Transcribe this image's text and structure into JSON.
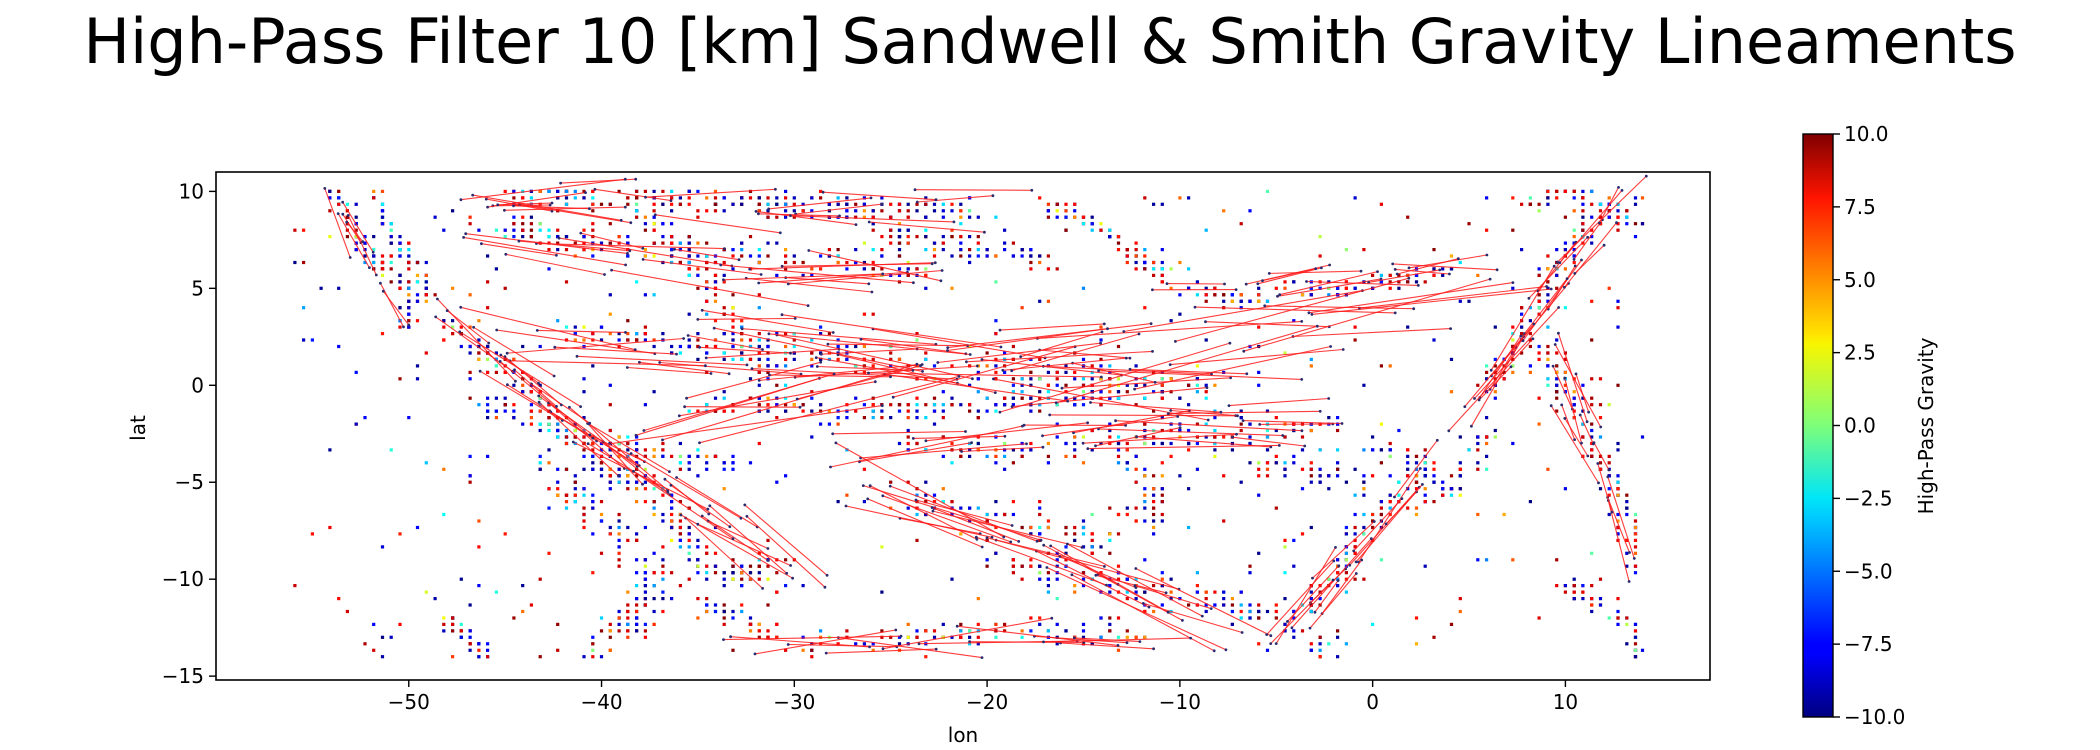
{
  "chart_data": {
    "type": "scatter",
    "title": "High-Pass Filter 10 [km] Sandwell & Smith Gravity Lineaments",
    "xlabel": "lon",
    "ylabel": "lat",
    "xlim": [
      -60,
      17.5
    ],
    "ylim": [
      -15.2,
      11
    ],
    "xticks": [
      -50,
      -40,
      -30,
      -20,
      -10,
      0,
      10
    ],
    "yticks": [
      -15,
      -10,
      -5,
      0,
      5,
      10
    ],
    "grid": false,
    "colorbar": {
      "label": "High-Pass Gravity",
      "colormap": "jet",
      "range": [
        -10,
        10
      ],
      "ticks": [
        "10.0",
        "7.5",
        "5.0",
        "2.5",
        "0.0",
        "−2.5",
        "−5.0",
        "−7.5",
        "−10.0"
      ]
    },
    "series": [
      {
        "kind": "points",
        "data_extent": {
          "lon": [
            -56,
            14
          ],
          "lat": [
            -14,
            10
          ]
        },
        "clusters": [
          {
            "path": [
              [
                -54,
                10
              ],
              [
                -53,
                8.5
              ],
              [
                -52,
                6.5
              ],
              [
                -50,
                5
              ],
              [
                -50,
                3
              ]
            ],
            "n": 110,
            "spread": 0.5
          },
          {
            "path": [
              [
                -52,
                10
              ],
              [
                -51,
                8
              ],
              [
                -49.5,
                6
              ],
              [
                -49,
                4.5
              ]
            ],
            "n": 70,
            "spread": 0.5
          },
          {
            "path": [
              [
                -48,
                3
              ],
              [
                -45,
                1
              ],
              [
                -43,
                -1
              ],
              [
                -41,
                -3
              ],
              [
                -39,
                -5
              ]
            ],
            "n": 140,
            "spread": 0.7
          },
          {
            "path": [
              [
                -46,
                -1
              ],
              [
                -43,
                -2
              ],
              [
                -40,
                -3
              ],
              [
                -37,
                -3.5
              ],
              [
                -33,
                -4
              ]
            ],
            "n": 120,
            "spread": 0.7
          },
          {
            "path": [
              [
                -40,
                -3
              ],
              [
                -38,
                -5
              ],
              [
                -36,
                -7
              ],
              [
                -35,
                -9
              ],
              [
                -33,
                -10
              ],
              [
                -31,
                -9
              ]
            ],
            "n": 160,
            "spread": 1.0
          },
          {
            "path": [
              [
                -43,
                -4
              ],
              [
                -41,
                -6
              ],
              [
                -39,
                -8
              ],
              [
                -37,
                -10
              ],
              [
                -38,
                -12
              ],
              [
                -40,
                -13.5
              ]
            ],
            "n": 150,
            "spread": 1.1
          },
          {
            "path": [
              [
                -48,
                -12
              ],
              [
                -47,
                -13
              ],
              [
                -46,
                -14
              ]
            ],
            "n": 45,
            "spread": 0.6
          },
          {
            "path": [
              [
                -35,
                -11
              ],
              [
                -33,
                -12
              ],
              [
                -31,
                -13
              ]
            ],
            "n": 40,
            "spread": 0.6
          },
          {
            "path": [
              [
                -45,
                10
              ],
              [
                -36,
                9.5
              ],
              [
                -28,
                9.2
              ],
              [
                -20,
                9
              ]
            ],
            "n": 230,
            "spread": 0.8
          },
          {
            "path": [
              [
                -45,
                8
              ],
              [
                -37,
                7
              ],
              [
                -30,
                6.5
              ],
              [
                -23,
                6
              ]
            ],
            "n": 180,
            "spread": 0.9
          },
          {
            "path": [
              [
                -38,
                9
              ],
              [
                -35,
                6
              ],
              [
                -33,
                3
              ],
              [
                -31,
                0
              ]
            ],
            "n": 130,
            "spread": 0.8
          },
          {
            "path": [
              [
                -26,
                8
              ],
              [
                -23,
                7.5
              ],
              [
                -20,
                7
              ],
              [
                -17,
                6.5
              ]
            ],
            "n": 90,
            "spread": 0.7
          },
          {
            "path": [
              [
                -17,
                9.5
              ],
              [
                -14,
                8
              ],
              [
                -12,
                6.5
              ],
              [
                -10,
                5
              ]
            ],
            "n": 90,
            "spread": 0.6
          },
          {
            "path": [
              [
                -10,
                5
              ],
              [
                -7,
                4.5
              ],
              [
                -4,
                5
              ],
              [
                -1,
                5
              ],
              [
                2,
                5.5
              ],
              [
                4,
                6
              ]
            ],
            "n": 110,
            "spread": 0.5
          },
          {
            "path": [
              [
                -42,
                3
              ],
              [
                -35,
                2
              ],
              [
                -28,
                1.5
              ],
              [
                -22,
                0.8
              ],
              [
                -16,
                0.5
              ],
              [
                -10,
                0.3
              ]
            ],
            "n": 220,
            "spread": 0.9
          },
          {
            "path": [
              [
                -35,
                -1
              ],
              [
                -27,
                -1.2
              ],
              [
                -20,
                -1
              ],
              [
                -14,
                -0.5
              ],
              [
                -8,
                0
              ]
            ],
            "n": 210,
            "spread": 0.8
          },
          {
            "path": [
              [
                -25,
                -3
              ],
              [
                -19,
                -3.5
              ],
              [
                -13,
                -3
              ],
              [
                -7,
                -2.5
              ],
              [
                -2,
                -2
              ]
            ],
            "n": 160,
            "spread": 0.9
          },
          {
            "path": [
              [
                -24,
                -6
              ],
              [
                -18,
                -7
              ],
              [
                -14,
                -8
              ],
              [
                -11,
                -6
              ],
              [
                -13,
                -3
              ]
            ],
            "n": 140,
            "spread": 1.1
          },
          {
            "path": [
              [
                -20,
                -9
              ],
              [
                -15,
                -10
              ],
              [
                -10,
                -11
              ],
              [
                -5,
                -12
              ],
              [
                -2,
                -13.5
              ]
            ],
            "n": 150,
            "spread": 1.1
          },
          {
            "path": [
              [
                -30,
                -13.5
              ],
              [
                -24,
                -13
              ],
              [
                -18,
                -12.5
              ],
              [
                -12,
                -13
              ]
            ],
            "n": 100,
            "spread": 0.6
          },
          {
            "path": [
              [
                -4,
                -12
              ],
              [
                -2,
                -10
              ],
              [
                -1,
                -8
              ],
              [
                1,
                -6
              ],
              [
                3,
                -4
              ]
            ],
            "n": 110,
            "spread": 0.7
          },
          {
            "path": [
              [
                0,
                -3
              ],
              [
                2,
                -4
              ],
              [
                4,
                -5.5
              ],
              [
                5,
                -4
              ],
              [
                6,
                -2
              ]
            ],
            "n": 70,
            "spread": 0.6
          },
          {
            "path": [
              [
                -6,
                -4
              ],
              [
                -3,
                -4.5
              ],
              [
                0,
                -5
              ],
              [
                3,
                -6
              ]
            ],
            "n": 60,
            "spread": 0.8
          },
          {
            "path": [
              [
                6,
                0
              ],
              [
                7.5,
                2
              ],
              [
                8.5,
                4
              ],
              [
                9.5,
                6
              ],
              [
                11,
                8
              ],
              [
                13,
                9.5
              ]
            ],
            "n": 140,
            "spread": 0.6
          },
          {
            "path": [
              [
                9,
                2
              ],
              [
                10,
                0
              ],
              [
                11,
                -2
              ],
              [
                12,
                -4
              ],
              [
                13,
                -6
              ],
              [
                13.5,
                -9
              ]
            ],
            "n": 130,
            "spread": 0.9
          },
          {
            "path": [
              [
                10,
                -10.5
              ],
              [
                12,
                -11.5
              ],
              [
                13.5,
                -12.5
              ],
              [
                13.8,
                -14
              ]
            ],
            "n": 50,
            "spread": 0.5
          },
          {
            "path": [
              [
                8,
                9.5
              ],
              [
                10,
                10
              ],
              [
                12,
                9
              ],
              [
                14,
                8
              ]
            ],
            "n": 60,
            "spread": 0.6
          }
        ],
        "scattered": {
          "n": 480
        }
      },
      {
        "kind": "lineaments",
        "color": "#ff1a1a",
        "line_families": [
          {
            "path": [
              [
                -45,
                9.5
              ],
              [
                -20,
                9.2
              ]
            ],
            "count": 22,
            "jitter": 1.4,
            "len": 7
          },
          {
            "path": [
              [
                -45,
                7
              ],
              [
                -22,
                5.5
              ]
            ],
            "count": 20,
            "jitter": 1.4,
            "len": 8
          },
          {
            "path": [
              [
                -42,
                2.5
              ],
              [
                -8,
                0.3
              ]
            ],
            "count": 40,
            "jitter": 1.6,
            "len": 9
          },
          {
            "path": [
              [
                -35,
                -1
              ],
              [
                4,
                4
              ]
            ],
            "count": 35,
            "jitter": 1.6,
            "len": 11
          },
          {
            "path": [
              [
                -25,
                -3
              ],
              [
                -2,
                -2
              ]
            ],
            "count": 24,
            "jitter": 1.3,
            "len": 8
          },
          {
            "path": [
              [
                -48,
                3
              ],
              [
                -38,
                -5
              ]
            ],
            "count": 18,
            "jitter": 1.0,
            "len": 6
          },
          {
            "path": [
              [
                -40,
                -3
              ],
              [
                -31,
                -9
              ]
            ],
            "count": 18,
            "jitter": 1.2,
            "len": 6
          },
          {
            "path": [
              [
                -24,
                -6
              ],
              [
                -8,
                -12
              ]
            ],
            "count": 26,
            "jitter": 1.6,
            "len": 8
          },
          {
            "path": [
              [
                -30,
                -13.5
              ],
              [
                -12,
                -13
              ]
            ],
            "count": 14,
            "jitter": 0.6,
            "len": 8
          },
          {
            "path": [
              [
                6,
                0
              ],
              [
                13,
                9.5
              ]
            ],
            "count": 20,
            "jitter": 0.8,
            "len": 5
          },
          {
            "path": [
              [
                9,
                2
              ],
              [
                13.5,
                -9
              ]
            ],
            "count": 14,
            "jitter": 1.2,
            "len": 4
          },
          {
            "path": [
              [
                -4,
                -12
              ],
              [
                3,
                -4
              ]
            ],
            "count": 16,
            "jitter": 1.0,
            "len": 5
          },
          {
            "path": [
              [
                -54,
                10
              ],
              [
                -50,
                3
              ]
            ],
            "count": 8,
            "jitter": 0.6,
            "len": 3
          },
          {
            "path": [
              [
                -10,
                5
              ],
              [
                4,
                6
              ]
            ],
            "count": 14,
            "jitter": 0.6,
            "len": 6
          }
        ]
      }
    ]
  }
}
